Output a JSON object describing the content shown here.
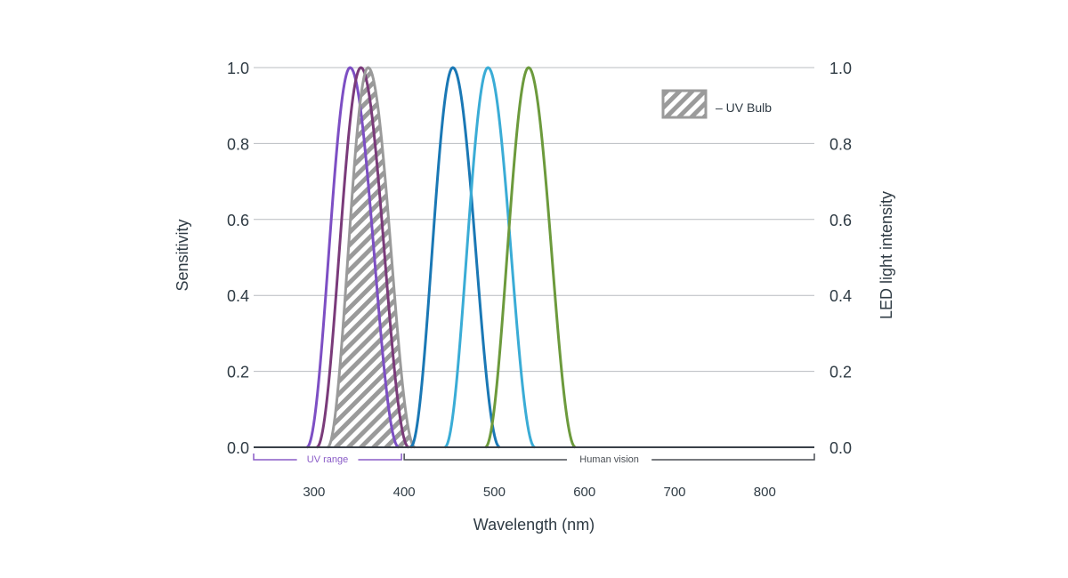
{
  "chart_data": {
    "type": "line",
    "xlabel": "Wavelength (nm)",
    "ylabel_left": "Sensitivity",
    "ylabel_right": "LED light intensity",
    "xlim": [
      233,
      855
    ],
    "ylim": [
      0,
      1.0
    ],
    "x_ticks": [
      300,
      400,
      500,
      600,
      700,
      800
    ],
    "y_ticks": [
      0.0,
      0.2,
      0.4,
      0.6,
      0.8,
      1.0
    ],
    "y_tick_labels": [
      "0.0",
      "0.2",
      "0.4",
      "0.6",
      "0.8",
      "1.0"
    ],
    "grid": true,
    "legend": {
      "label": "– UV Bulb",
      "position": "top-right"
    },
    "bands": [
      {
        "label": "UV range",
        "start": 233,
        "end": 397,
        "color": "#8a5cc7"
      },
      {
        "label": "Human vision",
        "start": 400,
        "end": 855,
        "color": "#4a4f55"
      }
    ],
    "series": [
      {
        "color": "#7d4fc4",
        "peak": 340,
        "start": 292,
        "end": 394,
        "fill": "none"
      },
      {
        "color": "#7a3b7a",
        "peak": 352,
        "start": 303,
        "end": 405,
        "fill": "none"
      },
      {
        "color": "#9a9a9a",
        "peak": 360,
        "start": 315,
        "end": 412,
        "fill": "hatch"
      },
      {
        "color": "#1a78b5",
        "peak": 454,
        "start": 407,
        "end": 506,
        "fill": "none"
      },
      {
        "color": "#3aacd6",
        "peak": 493,
        "start": 445,
        "end": 545,
        "fill": "none"
      },
      {
        "color": "#6c9a3c",
        "peak": 538,
        "start": 490,
        "end": 590,
        "fill": "none"
      }
    ]
  }
}
